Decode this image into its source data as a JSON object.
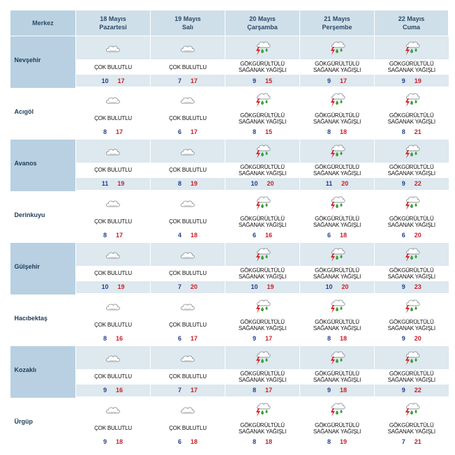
{
  "header": {
    "merkez": "Merkez",
    "days": [
      {
        "date": "18 Mayıs",
        "weekday": "Pazartesi"
      },
      {
        "date": "19 Mayıs",
        "weekday": "Salı"
      },
      {
        "date": "20 Mayıs",
        "weekday": "Çarşamba"
      },
      {
        "date": "21 Mayıs",
        "weekday": "Perşembe"
      },
      {
        "date": "22 Mayıs",
        "weekday": "Cuma"
      }
    ]
  },
  "conditions": {
    "cloudy": "ÇOK BULUTLU",
    "storm_line1": "GÖKGÜRÜLTÜLÜ",
    "storm_line2": "SAĞANAK YAĞIŞLI"
  },
  "icons": {
    "cloudy": "cloud-icon",
    "storm": "thunderstorm-rain-icon"
  },
  "colors": {
    "header_bg": "#cfdfe9",
    "city_bg": "#b8d0e1",
    "low_temp": "#1f3f8f",
    "high_temp": "#c8202a"
  },
  "rows": [
    {
      "city": "Nevşehir",
      "days": [
        {
          "type": "cloudy",
          "lo": "10",
          "hi": "17"
        },
        {
          "type": "cloudy",
          "lo": "7",
          "hi": "17"
        },
        {
          "type": "storm",
          "lo": "9",
          "hi": "15"
        },
        {
          "type": "storm",
          "lo": "9",
          "hi": "17"
        },
        {
          "type": "storm",
          "lo": "9",
          "hi": "19"
        }
      ]
    },
    {
      "city": "Acıgöl",
      "days": [
        {
          "type": "cloudy",
          "lo": "8",
          "hi": "17"
        },
        {
          "type": "cloudy",
          "lo": "6",
          "hi": "17"
        },
        {
          "type": "storm",
          "lo": "8",
          "hi": "15"
        },
        {
          "type": "storm",
          "lo": "8",
          "hi": "18"
        },
        {
          "type": "storm",
          "lo": "8",
          "hi": "21"
        }
      ]
    },
    {
      "city": "Avanos",
      "days": [
        {
          "type": "cloudy",
          "lo": "11",
          "hi": "19"
        },
        {
          "type": "cloudy",
          "lo": "8",
          "hi": "19"
        },
        {
          "type": "storm",
          "lo": "10",
          "hi": "20"
        },
        {
          "type": "storm",
          "lo": "11",
          "hi": "20"
        },
        {
          "type": "storm",
          "lo": "9",
          "hi": "22"
        }
      ]
    },
    {
      "city": "Derinkuyu",
      "days": [
        {
          "type": "cloudy",
          "lo": "8",
          "hi": "17"
        },
        {
          "type": "cloudy",
          "lo": "4",
          "hi": "18"
        },
        {
          "type": "storm",
          "lo": "6",
          "hi": "16"
        },
        {
          "type": "storm",
          "lo": "6",
          "hi": "18"
        },
        {
          "type": "storm",
          "lo": "6",
          "hi": "20"
        }
      ]
    },
    {
      "city": "Gülşehir",
      "days": [
        {
          "type": "cloudy",
          "lo": "10",
          "hi": "19"
        },
        {
          "type": "cloudy",
          "lo": "7",
          "hi": "20"
        },
        {
          "type": "storm",
          "lo": "10",
          "hi": "19"
        },
        {
          "type": "storm",
          "lo": "10",
          "hi": "20"
        },
        {
          "type": "storm",
          "lo": "9",
          "hi": "23"
        }
      ]
    },
    {
      "city": "Hacıbektaş",
      "days": [
        {
          "type": "cloudy",
          "lo": "8",
          "hi": "16"
        },
        {
          "type": "cloudy",
          "lo": "6",
          "hi": "17"
        },
        {
          "type": "storm",
          "lo": "9",
          "hi": "17"
        },
        {
          "type": "storm",
          "lo": "8",
          "hi": "18"
        },
        {
          "type": "storm",
          "lo": "9",
          "hi": "20"
        }
      ]
    },
    {
      "city": "Kozaklı",
      "days": [
        {
          "type": "cloudy",
          "lo": "9",
          "hi": "16"
        },
        {
          "type": "cloudy",
          "lo": "7",
          "hi": "17"
        },
        {
          "type": "storm",
          "lo": "8",
          "hi": "17"
        },
        {
          "type": "storm",
          "lo": "9",
          "hi": "18"
        },
        {
          "type": "storm",
          "lo": "9",
          "hi": "22"
        }
      ]
    },
    {
      "city": "Ürgüp",
      "days": [
        {
          "type": "cloudy",
          "lo": "9",
          "hi": "18"
        },
        {
          "type": "cloudy",
          "lo": "6",
          "hi": "18"
        },
        {
          "type": "storm",
          "lo": "8",
          "hi": "18"
        },
        {
          "type": "storm",
          "lo": "8",
          "hi": "19"
        },
        {
          "type": "storm",
          "lo": "7",
          "hi": "21"
        }
      ]
    }
  ]
}
